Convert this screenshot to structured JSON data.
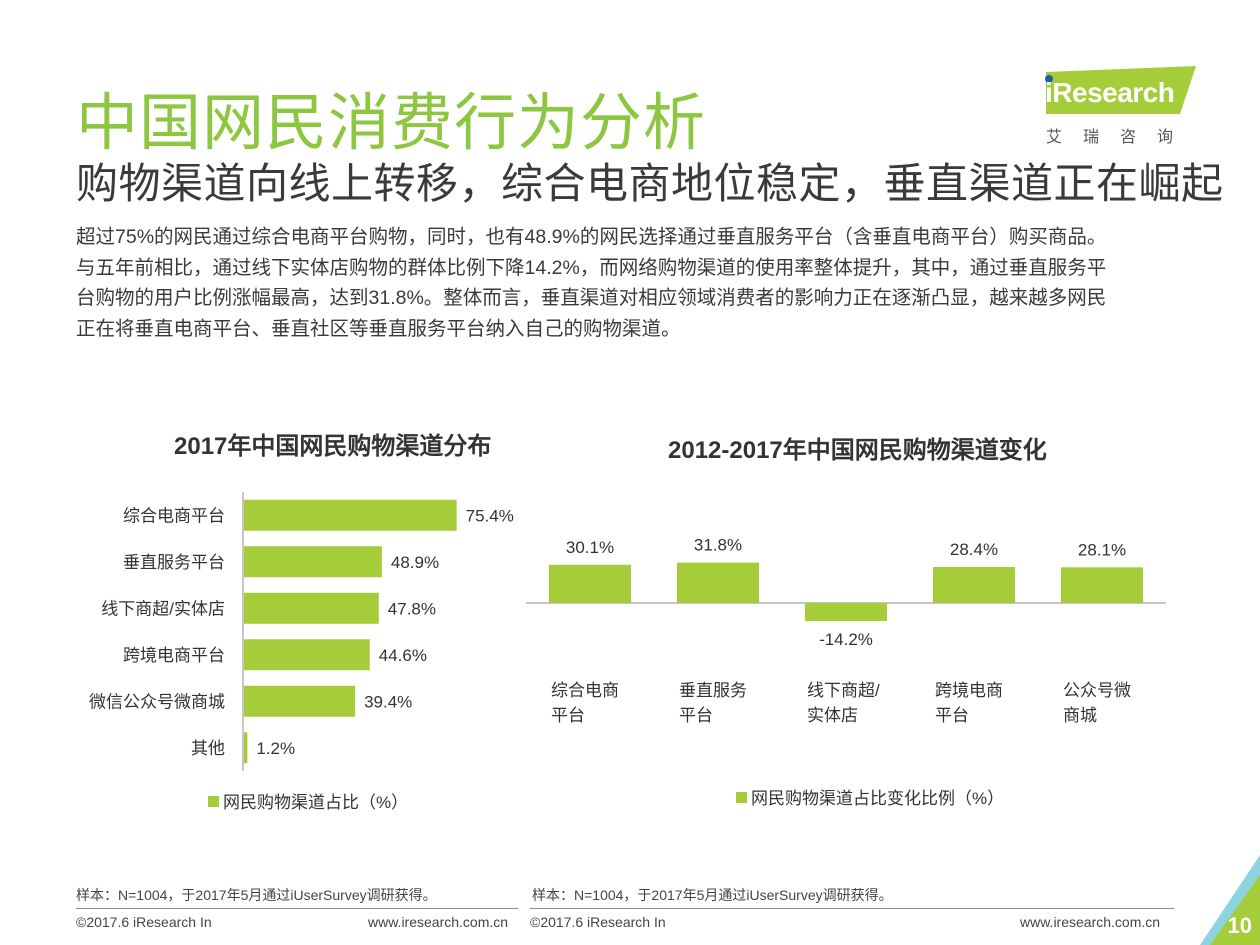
{
  "header": {
    "title": "中国网民消费行为分析",
    "subtitle": "购物渠道向线上转移，综合电商地位稳定，垂直渠道正在崛起",
    "body_lines": [
      "超过75%的网民通过综合电商平台购物，同时，也有48.9%的网民选择通过垂直服务平台（含垂直电商平台）购买商品。",
      "与五年前相比，通过线下实体店购物的群体比例下降14.2%，而网络购物渠道的使用率整体提升，其中，通过垂直服务平",
      "台购物的用户比例涨幅最高，达到31.8%。整体而言，垂直渠道对相应领域消费者的影响力正在逐渐凸显，越来越多网民",
      "正在将垂直电商平台、垂直社区等垂直服务平台纳入自己的购物渠道。"
    ]
  },
  "logo": {
    "brand": "iResearch",
    "sub": "艾瑞咨询",
    "color": "#a5cd39"
  },
  "colors": {
    "accent": "#8dc63f",
    "bar": "#a5cd39"
  },
  "chart_data": [
    {
      "type": "bar",
      "orientation": "horizontal",
      "title": "2017年中国网民购物渠道分布",
      "categories": [
        "综合电商平台",
        "垂直服务平台",
        "线下商超/实体店",
        "跨境电商平台",
        "微信公众号微商城",
        "其他"
      ],
      "series": [
        {
          "name": "网民购物渠道占比（%）",
          "values": [
            75.4,
            48.9,
            47.8,
            44.6,
            39.4,
            1.2
          ]
        }
      ],
      "value_labels": [
        "75.4%",
        "48.9%",
        "47.8%",
        "44.6%",
        "39.4%",
        "1.2%"
      ],
      "grid": false,
      "legend": "bottom"
    },
    {
      "type": "bar",
      "title": "2012-2017年中国网民购物渠道变化",
      "categories": [
        [
          "综合电商",
          "平台"
        ],
        [
          "垂直服务",
          "平台"
        ],
        [
          "线下商超/",
          "实体店"
        ],
        [
          "跨境电商",
          "平台"
        ],
        [
          "公众号微",
          "商城"
        ]
      ],
      "series": [
        {
          "name": "网民购物渠道占比变化比例（%）",
          "values": [
            30.1,
            31.8,
            -14.2,
            28.4,
            28.1
          ]
        }
      ],
      "value_labels": [
        "30.1%",
        "31.8%",
        "-14.2%",
        "28.4%",
        "28.1%"
      ],
      "grid": false,
      "legend": "bottom"
    }
  ],
  "footer": {
    "sample_left": "样本：N=1004，于2017年5月通过iUserSurvey调研获得。",
    "sample_right": "样本：N=1004，于2017年5月通过iUserSurvey调研获得。",
    "copyright_left": "©2017.6 iResearch In",
    "url_left": "www.iresearch.com.cn",
    "copyright_right": "©2017.6 iResearch In",
    "url_right": "www.iresearch.com.cn",
    "page_number": "10"
  }
}
